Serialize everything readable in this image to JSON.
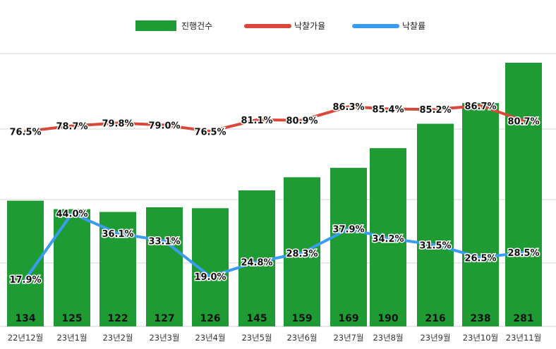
{
  "chart_data": {
    "type": "bar",
    "categories": [
      "22년12월",
      "23년1월",
      "23년2월",
      "23년3월",
      "23년4월",
      "23년5월",
      "23년6월",
      "23년7월",
      "23년8월",
      "23년9월",
      "23년10월",
      "23년11월"
    ],
    "series": [
      {
        "name": "진행건수",
        "kind": "bar",
        "color": "#1e9c33",
        "axis": "left",
        "values": [
          134,
          125,
          122,
          127,
          126,
          145,
          159,
          169,
          190,
          216,
          238,
          281
        ],
        "labels": [
          "134",
          "125",
          "122",
          "127",
          "126",
          "145",
          "159",
          "169",
          "190",
          "216",
          "238",
          "281"
        ]
      },
      {
        "name": "낙찰가율",
        "kind": "line",
        "color": "#d9473a",
        "axis": "right",
        "values": [
          76.5,
          78.7,
          79.8,
          79.0,
          76.5,
          81.1,
          80.9,
          86.3,
          85.4,
          85.2,
          86.7,
          80.7
        ],
        "labels": [
          "76.5%",
          "78.7%",
          "79.8%",
          "79.0%",
          "76.5%",
          "81.1%",
          "80.9%",
          "86.3%",
          "85.4%",
          "85.2%",
          "86.7%",
          "80.7%"
        ]
      },
      {
        "name": "낙찰률",
        "kind": "line",
        "color": "#3a9cf0",
        "axis": "right",
        "values": [
          17.9,
          44.0,
          36.1,
          33.1,
          19.0,
          24.8,
          28.3,
          37.9,
          34.2,
          31.5,
          26.5,
          28.5
        ],
        "labels": [
          "17.9%",
          "44.0%",
          "36.1%",
          "33.1%",
          "19.0%",
          "24.8%",
          "28.3%",
          "37.9%",
          "34.2%",
          "31.5%",
          "26.5%",
          "28.5%"
        ]
      }
    ],
    "grid": true,
    "legend_position": "top-center"
  }
}
